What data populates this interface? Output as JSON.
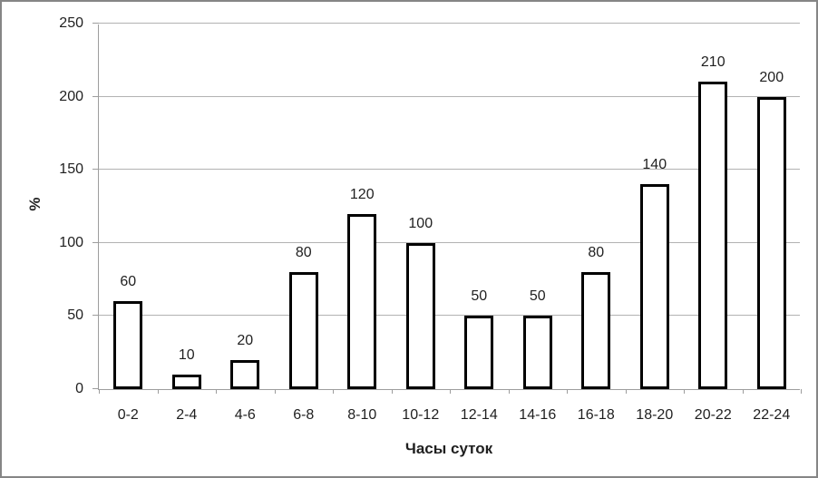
{
  "chart_data": {
    "type": "bar",
    "categories": [
      "0-2",
      "2-4",
      "4-6",
      "6-8",
      "8-10",
      "10-12",
      "12-14",
      "14-16",
      "16-18",
      "18-20",
      "20-22",
      "22-24"
    ],
    "values": [
      60,
      10,
      20,
      80,
      120,
      100,
      50,
      50,
      80,
      140,
      210,
      200
    ],
    "data_labels": [
      "60",
      "10",
      "20",
      "80",
      "120",
      "100",
      "50",
      "50",
      "80",
      "140",
      "210",
      "200"
    ],
    "title": "",
    "xlabel": "Часы суток",
    "ylabel": "%",
    "ylim": [
      0,
      250
    ],
    "ytick_step": 50,
    "yticks": [
      "0",
      "50",
      "100",
      "150",
      "200",
      "250"
    ],
    "grid": true,
    "legend": "none",
    "colors": {
      "bar_fill": "#ffffff",
      "bar_border": "#000000",
      "gridline": "#b2b2b2",
      "axis_line": "#9d9d9d",
      "text": "#1f1f1f",
      "frame_border": "#858585",
      "background": "#ffffff"
    }
  }
}
